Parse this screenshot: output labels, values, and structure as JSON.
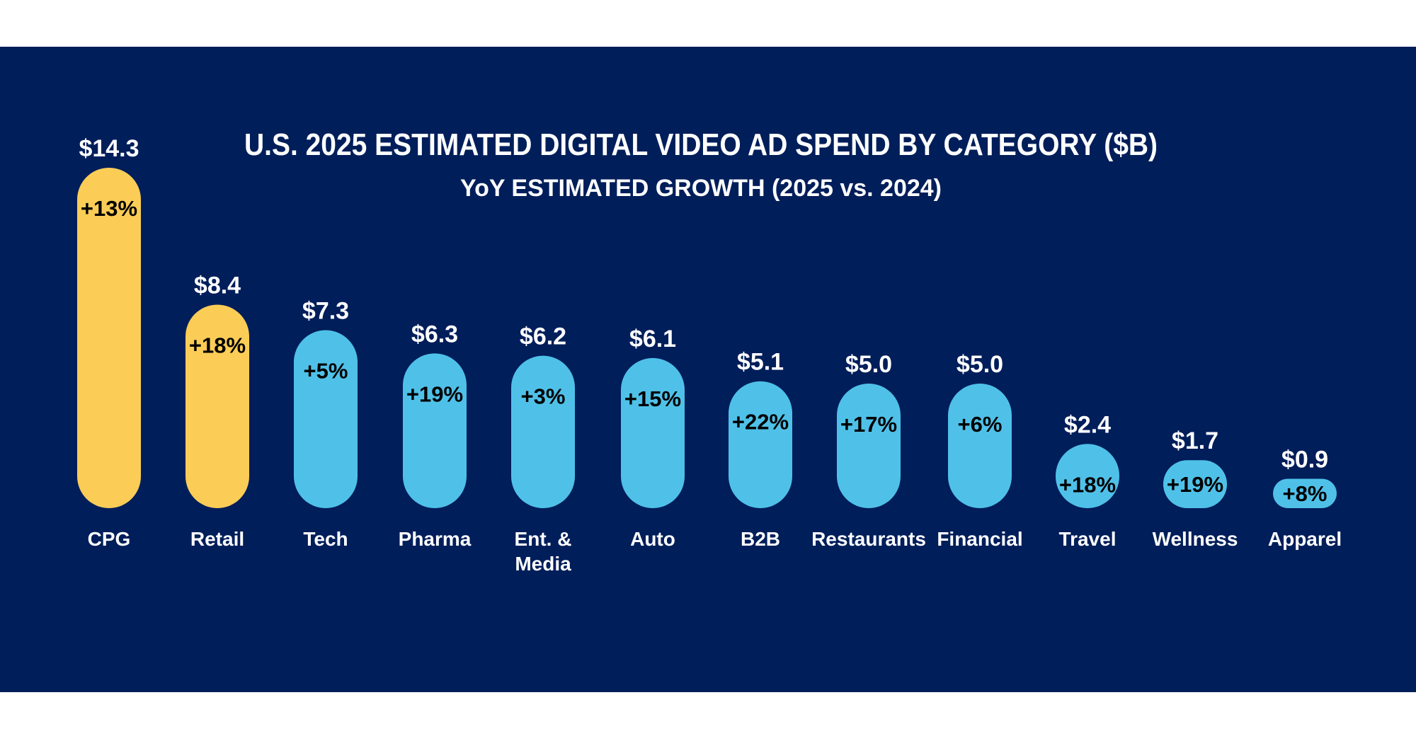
{
  "chart_data": {
    "type": "bar",
    "title": "U.S. 2025 ESTIMATED DIGITAL VIDEO AD SPEND BY CATEGORY ($B)",
    "subtitle": "YoY ESTIMATED GROWTH (2025 vs. 2024)",
    "categories": [
      "CPG",
      "Retail",
      "Tech",
      "Pharma",
      "Ent. & Media",
      "Auto",
      "B2B",
      "Restaurants",
      "Financial",
      "Travel",
      "Wellness",
      "Apparel"
    ],
    "values": [
      14.3,
      8.4,
      7.3,
      6.3,
      6.2,
      6.1,
      5.1,
      5.0,
      5.0,
      2.4,
      1.7,
      0.9
    ],
    "value_labels": [
      "$14.3",
      "$8.4",
      "$7.3",
      "$6.3",
      "$6.2",
      "$6.1",
      "$5.1",
      "$5.0",
      "$5.0",
      "$2.4",
      "$1.7",
      "$0.9"
    ],
    "growth_labels": [
      "+13%",
      "+18%",
      "+5%",
      "+19%",
      "+3%",
      "+15%",
      "+22%",
      "+17%",
      "+6%",
      "+18%",
      "+19%",
      "+8%"
    ],
    "highlight": [
      true,
      true,
      false,
      false,
      false,
      false,
      false,
      false,
      false,
      false,
      false,
      false
    ],
    "grid": false,
    "legend": "none"
  },
  "colors": {
    "background": "#001E5A",
    "highlight_bar": "#FBCD57",
    "bar": "#4FC1E9",
    "value_text": "#FFFFFF",
    "growth_text": "#000000"
  }
}
